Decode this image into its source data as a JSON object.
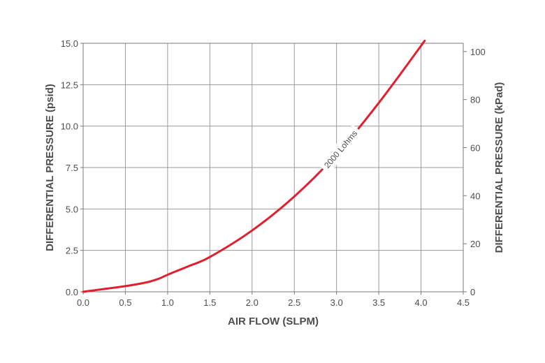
{
  "chart_data": {
    "type": "line",
    "xlabel": "AIR FLOW (SLPM)",
    "ylabel": "DIFFERENTIAL PRESSURE (psid)",
    "y2label": "DIFFERENTIAL PRESSURE (kPad)",
    "xlim": [
      0,
      4.5
    ],
    "ylim": [
      0,
      15
    ],
    "y2lim": [
      0,
      103.42
    ],
    "grid": true,
    "x_ticks": [
      "0.0",
      "0.5",
      "1.0",
      "1.5",
      "2.0",
      "2.5",
      "3.0",
      "3.5",
      "4.0",
      "4.5"
    ],
    "y_ticks": [
      "0.0",
      "2.5",
      "5.0",
      "7.5",
      "10.0",
      "12.5",
      "15.0"
    ],
    "y2_ticks": [
      "0",
      "20",
      "40",
      "60",
      "80",
      "100"
    ],
    "series": [
      {
        "name": "2000 Lohms",
        "color": "#e0202e",
        "x": [
          0.0,
          0.25,
          0.5,
          0.75,
          0.9,
          1.0,
          1.25,
          1.5,
          2.0,
          2.5,
          3.0,
          3.5,
          4.0,
          4.02
        ],
        "y": [
          0.0,
          0.17,
          0.34,
          0.57,
          0.8,
          1.03,
          1.55,
          2.1,
          3.7,
          5.75,
          8.3,
          11.4,
          14.85,
          15.0
        ]
      }
    ],
    "annotations": [
      {
        "text": "2000 Lohms",
        "x": 3.05,
        "y": 8.6
      }
    ]
  }
}
